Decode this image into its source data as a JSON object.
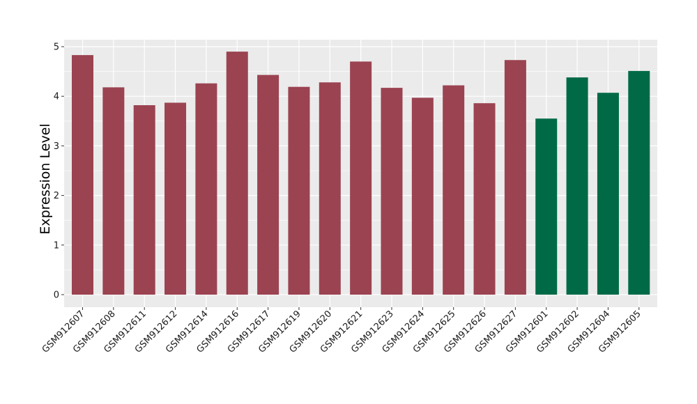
{
  "chart_data": {
    "type": "bar",
    "title": "",
    "xlabel": "",
    "ylabel": "Expression Level",
    "ylim": [
      0,
      5
    ],
    "yticks": [
      0,
      1,
      2,
      3,
      4,
      5
    ],
    "grid": true,
    "legend": "none",
    "colors": {
      "panel_background": "#ebebeb",
      "grid": "#ffffff",
      "group_1": "#9b4351",
      "group_2": "#006a46"
    },
    "categories": [
      "GSM912607",
      "GSM912608",
      "GSM912611",
      "GSM912612",
      "GSM912614",
      "GSM912616",
      "GSM912617",
      "GSM912619",
      "GSM912620",
      "GSM912621",
      "GSM912623",
      "GSM912624",
      "GSM912625",
      "GSM912626",
      "GSM912627",
      "GSM912601",
      "GSM912602",
      "GSM912604",
      "GSM912605"
    ],
    "values": [
      4.83,
      4.18,
      3.82,
      3.87,
      4.26,
      4.9,
      4.43,
      4.19,
      4.28,
      4.7,
      4.17,
      3.97,
      4.22,
      3.86,
      4.73,
      3.55,
      4.38,
      4.07,
      4.51
    ],
    "groups": [
      1,
      1,
      1,
      1,
      1,
      1,
      1,
      1,
      1,
      1,
      1,
      1,
      1,
      1,
      1,
      2,
      2,
      2,
      2
    ]
  }
}
